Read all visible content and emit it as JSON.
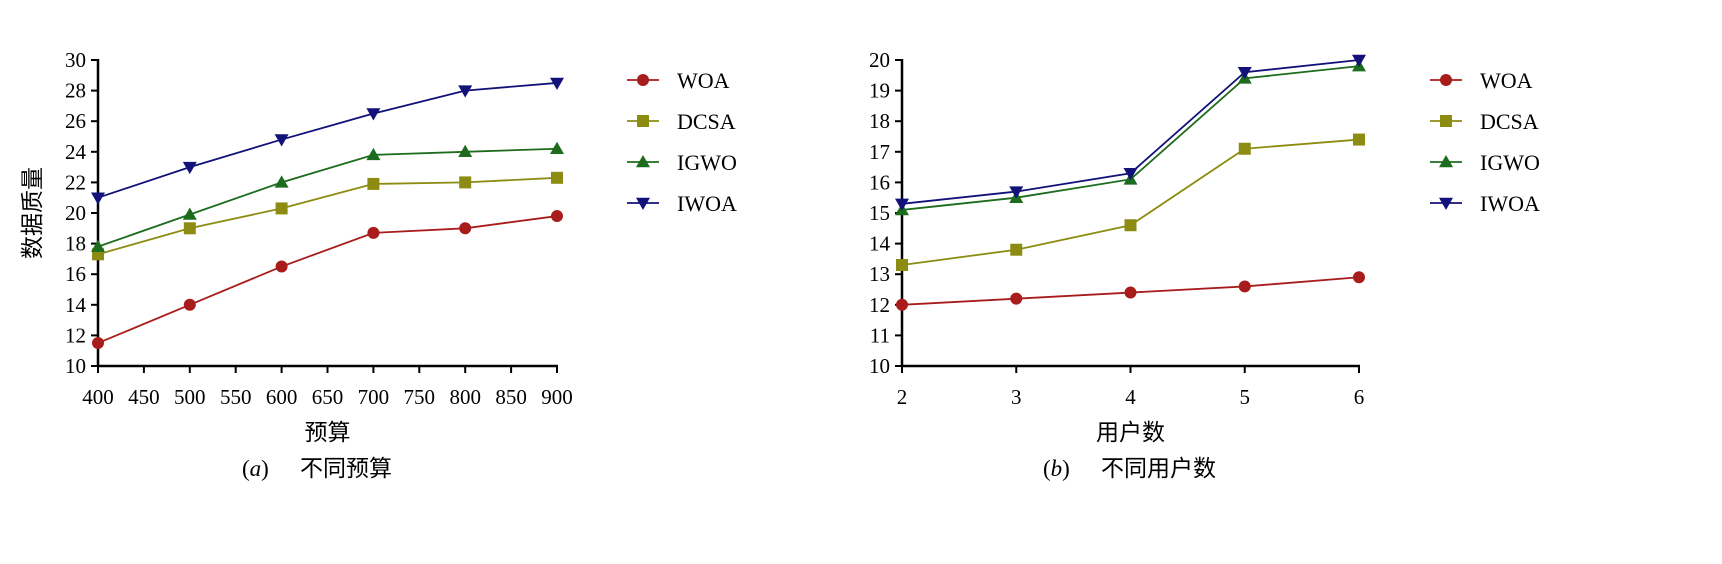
{
  "chart_data": [
    {
      "type": "line",
      "caption_letter": "a",
      "caption_text": "不同预算",
      "xlabel": "预算",
      "ylabel": "数据质量",
      "xlim": [
        400,
        900
      ],
      "ylim": [
        10,
        30
      ],
      "xticks": [
        400,
        450,
        500,
        550,
        600,
        650,
        700,
        750,
        800,
        850,
        900
      ],
      "yticks": [
        10,
        12,
        14,
        16,
        18,
        20,
        22,
        24,
        26,
        28,
        30
      ],
      "x": [
        400,
        500,
        600,
        700,
        800,
        900
      ],
      "legend_position": "right",
      "series": [
        {
          "name": "WOA",
          "marker": "circle",
          "color": "#a81c1c",
          "values": [
            11.5,
            14.0,
            16.5,
            18.7,
            19.0,
            19.8
          ]
        },
        {
          "name": "DCSA",
          "marker": "square",
          "color": "#8c8c12",
          "values": [
            17.3,
            19.0,
            20.3,
            21.9,
            22.0,
            22.3
          ]
        },
        {
          "name": "IGWO",
          "marker": "triangle-up",
          "color": "#1d6b1d",
          "values": [
            17.8,
            19.9,
            22.0,
            23.8,
            24.0,
            24.2
          ]
        },
        {
          "name": "IWOA",
          "marker": "triangle-down",
          "color": "#12127a",
          "values": [
            21.0,
            23.0,
            24.8,
            26.5,
            28.0,
            28.5
          ]
        }
      ]
    },
    {
      "type": "line",
      "caption_letter": "b",
      "caption_text": "不同用户数",
      "xlabel": "用户数",
      "ylabel": "数据质量",
      "xlim": [
        2,
        6
      ],
      "ylim": [
        10,
        20
      ],
      "xticks": [
        2,
        3,
        4,
        5,
        6
      ],
      "yticks": [
        10,
        11,
        12,
        13,
        14,
        15,
        16,
        17,
        18,
        19,
        20
      ],
      "x": [
        2,
        3,
        4,
        5,
        6
      ],
      "legend_position": "right",
      "series": [
        {
          "name": "WOA",
          "marker": "circle",
          "color": "#a81c1c",
          "values": [
            12.0,
            12.2,
            12.4,
            12.6,
            12.9
          ]
        },
        {
          "name": "DCSA",
          "marker": "square",
          "color": "#8c8c12",
          "values": [
            13.3,
            13.8,
            14.6,
            17.1,
            17.4
          ]
        },
        {
          "name": "IGWO",
          "marker": "triangle-up",
          "color": "#1d6b1d",
          "values": [
            15.1,
            15.5,
            16.1,
            19.4,
            19.8
          ]
        },
        {
          "name": "IWOA",
          "marker": "triangle-down",
          "color": "#12127a",
          "values": [
            15.3,
            15.7,
            16.3,
            19.6,
            20.0
          ]
        }
      ]
    }
  ]
}
